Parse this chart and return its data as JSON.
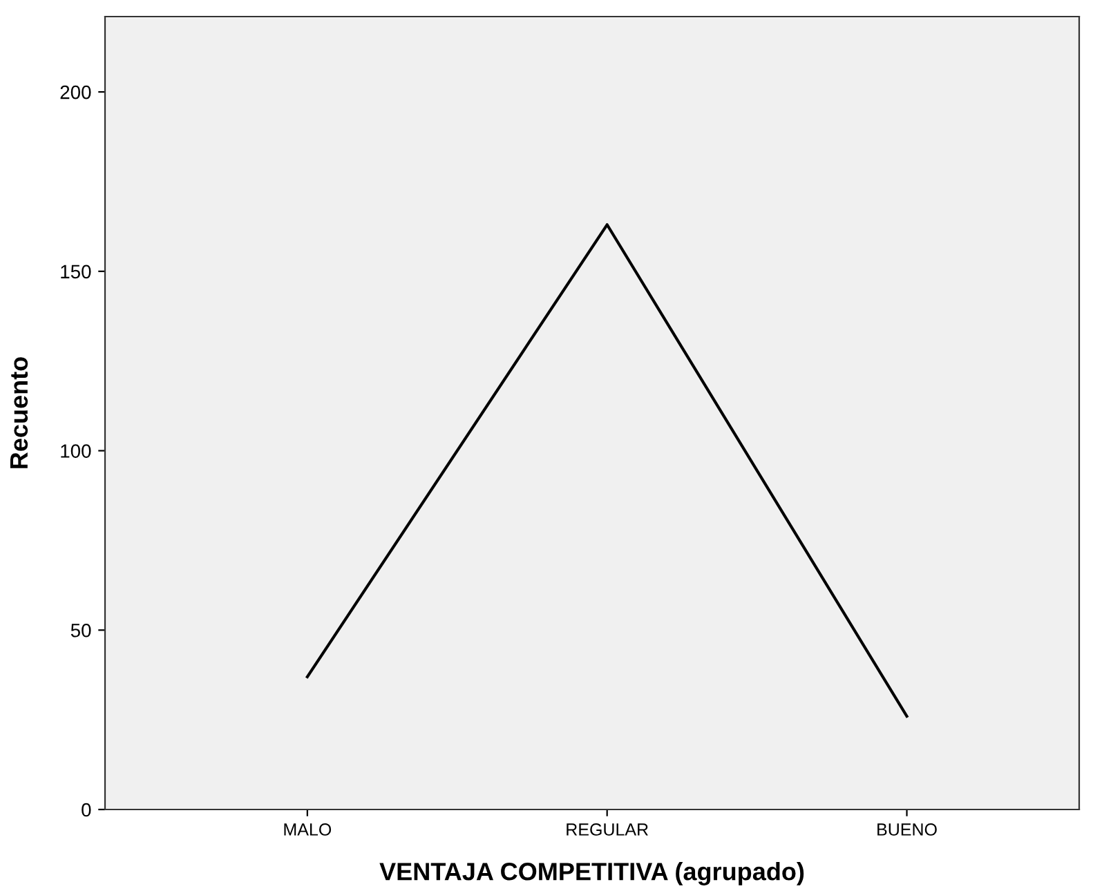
{
  "chart_data": {
    "type": "line",
    "xlabel": "VENTAJA COMPETITIVA (agrupado)",
    "ylabel": "Recuento",
    "categories": [
      "MALO",
      "REGULAR",
      "BUENO"
    ],
    "series": [
      {
        "color": "#000000",
        "values": [
          37,
          163,
          26
        ]
      }
    ],
    "ylim": [
      0,
      221
    ],
    "yticks": [
      0,
      50,
      100,
      150,
      200
    ],
    "grid": false,
    "marker": "none",
    "line_style": "solid"
  }
}
